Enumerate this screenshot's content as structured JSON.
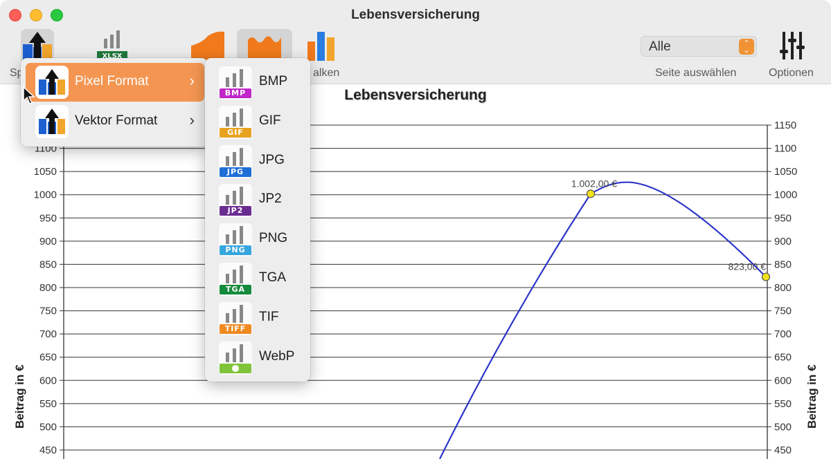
{
  "window": {
    "title": "Lebensversicherung"
  },
  "toolbar": {
    "items": [
      {
        "label": "Sp",
        "icon": "export-icon"
      },
      {
        "label": "",
        "icon": "xlsx-icon",
        "badge": "XLSX"
      },
      {
        "label": "",
        "icon": "area-chart-icon"
      },
      {
        "label": "",
        "icon": "curve-chart-icon"
      },
      {
        "label": "alken",
        "icon": "bar-chart-icon"
      }
    ],
    "page_select": {
      "value": "Alle",
      "label": "Seite auswählen"
    },
    "options_label": "Optionen"
  },
  "export_menu": {
    "items": [
      {
        "label": "Pixel Format",
        "selected": true
      },
      {
        "label": "Vektor Format",
        "selected": false
      }
    ],
    "chevron": "›"
  },
  "format_submenu": {
    "items": [
      {
        "label": "BMP",
        "badge": "BMP",
        "color": "#c026c9"
      },
      {
        "label": "GIF",
        "badge": "GIF",
        "color": "#e8a320"
      },
      {
        "label": "JPG",
        "badge": "JPG",
        "color": "#1f6fd6"
      },
      {
        "label": "JP2",
        "badge": "JP2",
        "color": "#6b2c91"
      },
      {
        "label": "PNG",
        "badge": "PNG",
        "color": "#36a6de"
      },
      {
        "label": "TGA",
        "badge": "TGA",
        "color": "#148a3c"
      },
      {
        "label": "TIF",
        "badge": "TIFF",
        "color": "#f08a20"
      },
      {
        "label": "WebP",
        "badge": "",
        "color": "#7fc43a"
      }
    ]
  },
  "chart_data": {
    "type": "line",
    "title": "Lebensversicherung",
    "ylabel": "Beitrag in €",
    "ylabel_right": "Beitrag in €",
    "yticks": [
      450,
      500,
      550,
      600,
      650,
      700,
      750,
      800,
      850,
      900,
      950,
      1000,
      1050,
      1100,
      1150
    ],
    "ylim": [
      425,
      1175
    ],
    "grid": true,
    "series_color": "#2b35c8",
    "points": [
      {
        "label": "1.002,00 €",
        "value": 1002
      },
      {
        "label": "823,00 €",
        "value": 823
      }
    ],
    "peak_value": 1027
  }
}
